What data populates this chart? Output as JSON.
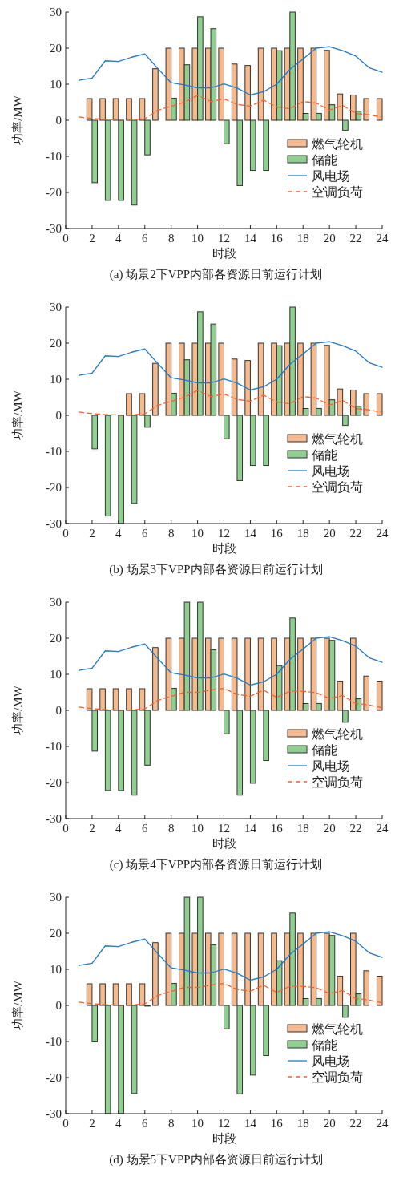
{
  "chart_data": [
    {
      "type": "bar",
      "title": "(a)  场景2下VPP内部各资源日前运行计划",
      "xlabel": "时段",
      "ylabel": "功率/MW",
      "xlim": [
        0,
        24
      ],
      "xticks": [
        0,
        2,
        4,
        6,
        8,
        10,
        12,
        14,
        16,
        18,
        20,
        22,
        24
      ],
      "ylim": [
        -30,
        30
      ],
      "yticks": [
        -30,
        -20,
        -10,
        0,
        10,
        20,
        30
      ],
      "legend": "bottom right",
      "grid": false,
      "series": [
        {
          "name": "燃气轮机",
          "color": "#f5b98c",
          "x": [
            2,
            3,
            4,
            5,
            6,
            7,
            8,
            9,
            10,
            11,
            12,
            13,
            14,
            15,
            16,
            17,
            18,
            19,
            20,
            21,
            22,
            23,
            24
          ],
          "values": [
            6,
            6,
            6,
            6,
            6,
            14.3,
            20,
            20,
            20,
            20,
            20,
            15.6,
            15.2,
            20,
            20,
            20,
            20,
            20,
            19.4,
            7.3,
            7.0,
            6,
            6
          ]
        },
        {
          "name": "储能",
          "color": "#8fcf8f",
          "x": [
            2,
            3,
            4,
            5,
            6,
            7,
            8,
            9,
            10,
            11,
            12,
            13,
            14,
            15,
            16,
            17,
            18,
            19,
            20,
            21,
            22,
            23,
            24
          ],
          "values": [
            -17.3,
            -22.2,
            -22.2,
            -23.5,
            -9.6,
            0,
            6.1,
            15.4,
            28.7,
            25.4,
            -6.5,
            -18.1,
            -13.9,
            -13.9,
            19.3,
            30,
            1.9,
            1.9,
            4.3,
            -2.8,
            2.5,
            0,
            0
          ]
        },
        {
          "name": "风电场",
          "type": "line",
          "color": "#1f78c8",
          "line_style": "solid",
          "x": [
            1,
            2,
            3,
            4,
            5,
            6,
            7,
            8,
            9,
            10,
            11,
            12,
            13,
            14,
            15,
            16,
            17,
            18,
            19,
            20,
            21,
            22,
            23,
            24
          ],
          "values": [
            11.1,
            11.7,
            16.5,
            16.3,
            17.5,
            18.4,
            14.3,
            10.4,
            9.8,
            9.0,
            9.0,
            10.1,
            8.9,
            7.0,
            7.9,
            10.0,
            14.1,
            17.0,
            20.0,
            20.4,
            19.3,
            17.8,
            14.6,
            13.3
          ]
        },
        {
          "name": "空调负荷",
          "type": "line",
          "color": "#f4622e",
          "line_style": "dashed",
          "x": [
            1,
            2,
            3,
            4,
            5,
            6,
            7,
            8,
            9,
            10,
            11,
            12,
            13,
            14,
            15,
            16,
            17,
            18,
            19,
            20,
            21,
            22,
            23,
            24
          ],
          "values": [
            0.9,
            0.5,
            0.2,
            0.1,
            0.1,
            0.4,
            2.8,
            3.9,
            5.0,
            6.9,
            5.2,
            5.9,
            4.4,
            3.9,
            5.6,
            3.7,
            3.2,
            5.2,
            4.8,
            2.8,
            4.1,
            1.9,
            1.5,
            0.9
          ]
        }
      ]
    },
    {
      "type": "bar",
      "title": "(b)  场景3下VPP内部各资源日前运行计划",
      "xlabel": "时段",
      "ylabel": "功率/MW",
      "xlim": [
        0,
        24
      ],
      "xticks": [
        0,
        2,
        4,
        6,
        8,
        10,
        12,
        14,
        16,
        18,
        20,
        22,
        24
      ],
      "ylim": [
        -30,
        30
      ],
      "yticks": [
        -30,
        -20,
        -10,
        0,
        10,
        20,
        30
      ],
      "legend": "bottom right",
      "grid": false,
      "series": [
        {
          "name": "燃气轮机",
          "color": "#f5b98c",
          "x": [
            2,
            3,
            4,
            5,
            6,
            7,
            8,
            9,
            10,
            11,
            12,
            13,
            14,
            15,
            16,
            17,
            18,
            19,
            20,
            21,
            22,
            23,
            24
          ],
          "values": [
            0,
            0,
            0,
            6,
            6,
            14.4,
            20,
            20,
            20,
            20,
            20,
            15.6,
            15.2,
            20,
            20,
            20,
            20,
            20,
            19.4,
            7.3,
            7.0,
            6,
            6
          ]
        },
        {
          "name": "储能",
          "color": "#8fcf8f",
          "x": [
            2,
            3,
            4,
            5,
            6,
            7,
            8,
            9,
            10,
            11,
            12,
            13,
            14,
            15,
            16,
            17,
            18,
            19,
            20,
            21,
            22,
            23,
            24
          ],
          "values": [
            -9.3,
            -27.9,
            -30,
            -24.4,
            -3.3,
            0,
            6.1,
            15.4,
            28.7,
            25.3,
            -6.5,
            -18.1,
            -13.9,
            -13.9,
            19.3,
            30,
            1.9,
            1.9,
            4.3,
            -2.8,
            2.5,
            0,
            0
          ]
        },
        {
          "name": "风电场",
          "type": "line",
          "color": "#1f78c8",
          "line_style": "solid",
          "x": [
            1,
            2,
            3,
            4,
            5,
            6,
            7,
            8,
            9,
            10,
            11,
            12,
            13,
            14,
            15,
            16,
            17,
            18,
            19,
            20,
            21,
            22,
            23,
            24
          ],
          "values": [
            11.1,
            11.7,
            16.5,
            16.3,
            17.5,
            18.4,
            14.3,
            10.4,
            9.8,
            9.0,
            9.0,
            10.1,
            8.9,
            7.0,
            7.9,
            10.0,
            14.1,
            17.0,
            20.0,
            20.4,
            19.3,
            17.8,
            14.6,
            13.3
          ]
        },
        {
          "name": "空调负荷",
          "type": "line",
          "color": "#f4622e",
          "line_style": "dashed",
          "x": [
            1,
            2,
            3,
            4,
            5,
            6,
            7,
            8,
            9,
            10,
            11,
            12,
            13,
            14,
            15,
            16,
            17,
            18,
            19,
            20,
            21,
            22,
            23,
            24
          ],
          "values": [
            0.9,
            0.5,
            0.2,
            0.1,
            0.1,
            0.4,
            2.8,
            3.9,
            5.0,
            6.9,
            5.2,
            5.9,
            4.4,
            3.9,
            5.6,
            3.7,
            3.2,
            5.2,
            4.8,
            2.8,
            4.1,
            1.9,
            1.5,
            0.9
          ]
        }
      ]
    },
    {
      "type": "bar",
      "title": "(c)  场景4下VPP内部各资源日前运行计划",
      "xlabel": "时段",
      "ylabel": "功率/MW",
      "xlim": [
        0,
        24
      ],
      "xticks": [
        0,
        2,
        4,
        6,
        8,
        10,
        12,
        14,
        16,
        18,
        20,
        22,
        24
      ],
      "ylim": [
        -30,
        30
      ],
      "yticks": [
        -30,
        -20,
        -10,
        0,
        10,
        20,
        30
      ],
      "legend": "bottom right",
      "grid": false,
      "series": [
        {
          "name": "燃气轮机",
          "color": "#f5b98c",
          "x": [
            2,
            3,
            4,
            5,
            6,
            7,
            8,
            9,
            10,
            11,
            12,
            13,
            14,
            15,
            16,
            17,
            18,
            19,
            20,
            21,
            22,
            23,
            24
          ],
          "values": [
            6,
            6,
            6,
            6,
            6,
            17.4,
            20,
            20,
            20,
            20,
            20,
            20,
            20,
            20,
            20,
            20,
            20,
            20,
            20,
            8.1,
            20,
            9.5,
            8.1
          ]
        },
        {
          "name": "储能",
          "color": "#8fcf8f",
          "x": [
            2,
            3,
            4,
            5,
            6,
            7,
            8,
            9,
            10,
            11,
            12,
            13,
            14,
            15,
            16,
            17,
            18,
            19,
            20,
            21,
            22,
            23,
            24
          ],
          "values": [
            -11.3,
            -22.2,
            -22.2,
            -23.5,
            -15.2,
            0,
            6.1,
            30,
            30,
            16.8,
            -6.5,
            -23.5,
            -20.2,
            -13.9,
            12.4,
            25.6,
            1.9,
            1.9,
            19.4,
            -3.3,
            3.2,
            0,
            0
          ]
        },
        {
          "name": "风电场",
          "type": "line",
          "color": "#1f78c8",
          "line_style": "solid",
          "x": [
            1,
            2,
            3,
            4,
            5,
            6,
            7,
            8,
            9,
            10,
            11,
            12,
            13,
            14,
            15,
            16,
            17,
            18,
            19,
            20,
            21,
            22,
            23,
            24
          ],
          "values": [
            11.1,
            11.7,
            16.5,
            16.3,
            17.5,
            18.4,
            14.3,
            10.4,
            9.8,
            9.0,
            9.0,
            10.1,
            8.9,
            7.0,
            7.9,
            10.0,
            14.1,
            17.0,
            20.0,
            20.4,
            19.3,
            17.8,
            14.6,
            13.3
          ]
        },
        {
          "name": "空调负荷",
          "type": "line",
          "color": "#f4622e",
          "line_style": "dashed",
          "x": [
            1,
            2,
            3,
            4,
            5,
            6,
            7,
            8,
            9,
            10,
            11,
            12,
            13,
            14,
            15,
            16,
            17,
            18,
            19,
            20,
            21,
            22,
            23,
            24
          ],
          "values": [
            0.9,
            0.5,
            0.2,
            0.1,
            0.1,
            0.4,
            2.8,
            3.9,
            5.0,
            5.0,
            5.6,
            6.1,
            4.4,
            3.9,
            5.6,
            3.6,
            5.3,
            5.3,
            4.9,
            3.3,
            4.1,
            1.9,
            1.5,
            0.7
          ]
        }
      ]
    },
    {
      "type": "bar",
      "title": "(d)  场景5下VPP内部各资源日前运行计划",
      "xlabel": "时段",
      "ylabel": "功率/MW",
      "xlim": [
        0,
        24
      ],
      "xticks": [
        0,
        2,
        4,
        6,
        8,
        10,
        12,
        14,
        16,
        18,
        20,
        22,
        24
      ],
      "ylim": [
        -30,
        30
      ],
      "yticks": [
        -30,
        -20,
        -10,
        0,
        10,
        20,
        30
      ],
      "legend": "bottom right",
      "grid": false,
      "series": [
        {
          "name": "燃气轮机",
          "color": "#f5b98c",
          "x": [
            2,
            3,
            4,
            5,
            6,
            7,
            8,
            9,
            10,
            11,
            12,
            13,
            14,
            15,
            16,
            17,
            18,
            19,
            20,
            21,
            22,
            23,
            24
          ],
          "values": [
            6,
            6,
            6,
            6,
            6,
            17.4,
            20,
            20,
            20,
            20,
            20,
            20,
            20,
            20,
            20,
            20,
            20,
            20,
            20,
            8.1,
            20,
            9.6,
            8.1
          ]
        },
        {
          "name": "储能",
          "color": "#8fcf8f",
          "x": [
            2,
            3,
            4,
            5,
            6,
            7,
            8,
            9,
            10,
            11,
            12,
            13,
            14,
            15,
            16,
            17,
            18,
            19,
            20,
            21,
            22,
            23,
            24
          ],
          "values": [
            -10.1,
            -30,
            -30,
            -24.4,
            -0.2,
            0,
            6.1,
            30,
            30,
            16.8,
            -6.5,
            -24.5,
            -19.3,
            -13.9,
            12.4,
            25.6,
            1.9,
            1.9,
            19.4,
            -3.3,
            3.2,
            0,
            0
          ]
        },
        {
          "name": "风电场",
          "type": "line",
          "color": "#1f78c8",
          "line_style": "solid",
          "x": [
            1,
            2,
            3,
            4,
            5,
            6,
            7,
            8,
            9,
            10,
            11,
            12,
            13,
            14,
            15,
            16,
            17,
            18,
            19,
            20,
            21,
            22,
            23,
            24
          ],
          "values": [
            11.1,
            11.7,
            16.5,
            16.3,
            17.5,
            18.4,
            14.3,
            10.4,
            9.8,
            9.0,
            9.0,
            10.1,
            8.9,
            7.0,
            7.9,
            10.0,
            14.1,
            17.0,
            20.0,
            20.4,
            19.3,
            17.8,
            14.6,
            13.3
          ]
        },
        {
          "name": "空调负荷",
          "type": "line",
          "color": "#f4622e",
          "line_style": "dashed",
          "x": [
            1,
            2,
            3,
            4,
            5,
            6,
            7,
            8,
            9,
            10,
            11,
            12,
            13,
            14,
            15,
            16,
            17,
            18,
            19,
            20,
            21,
            22,
            23,
            24
          ],
          "values": [
            0.9,
            0.5,
            0.2,
            0.1,
            0.1,
            0.4,
            2.8,
            3.9,
            5.0,
            5.0,
            5.6,
            6.1,
            4.4,
            3.9,
            5.6,
            3.6,
            5.3,
            5.3,
            4.9,
            3.3,
            4.1,
            1.9,
            1.5,
            0.7
          ]
        }
      ]
    }
  ]
}
